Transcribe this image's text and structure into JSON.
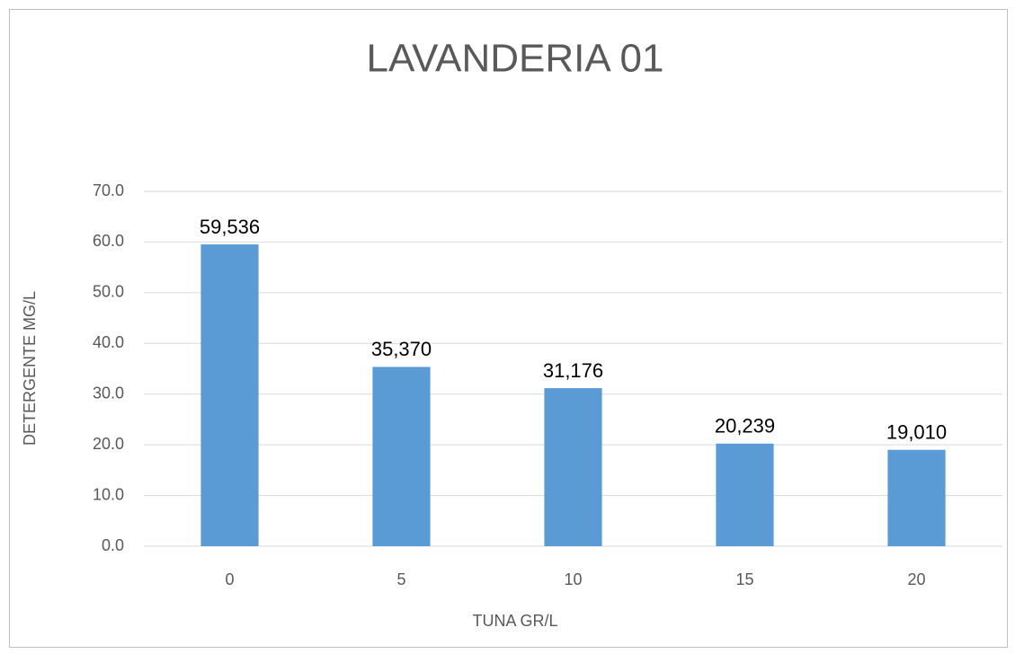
{
  "chart_data": {
    "type": "bar",
    "title": "LAVANDERIA 01",
    "x_label": "TUNA GR/L",
    "y_label": "DETERGENTE MG/L",
    "categories": [
      "0",
      "5",
      "10",
      "15",
      "20"
    ],
    "values": [
      59.536,
      35.37,
      31.176,
      20.239,
      19.01
    ],
    "value_labels": [
      "59,536",
      "35,370",
      "31,176",
      "20,239",
      "19,010"
    ],
    "color": "#5b9bd5",
    "ylim": [
      0,
      70
    ],
    "yticks": [
      {
        "value": 0,
        "label": "0.0"
      },
      {
        "value": 10,
        "label": "10.0"
      },
      {
        "value": 20,
        "label": "20.0"
      },
      {
        "value": 30,
        "label": "30.0"
      },
      {
        "value": 40,
        "label": "40.0"
      },
      {
        "value": 50,
        "label": "50.0"
      },
      {
        "value": 60,
        "label": "60.0"
      },
      {
        "value": 70,
        "label": "70.0"
      }
    ],
    "grid": true
  }
}
